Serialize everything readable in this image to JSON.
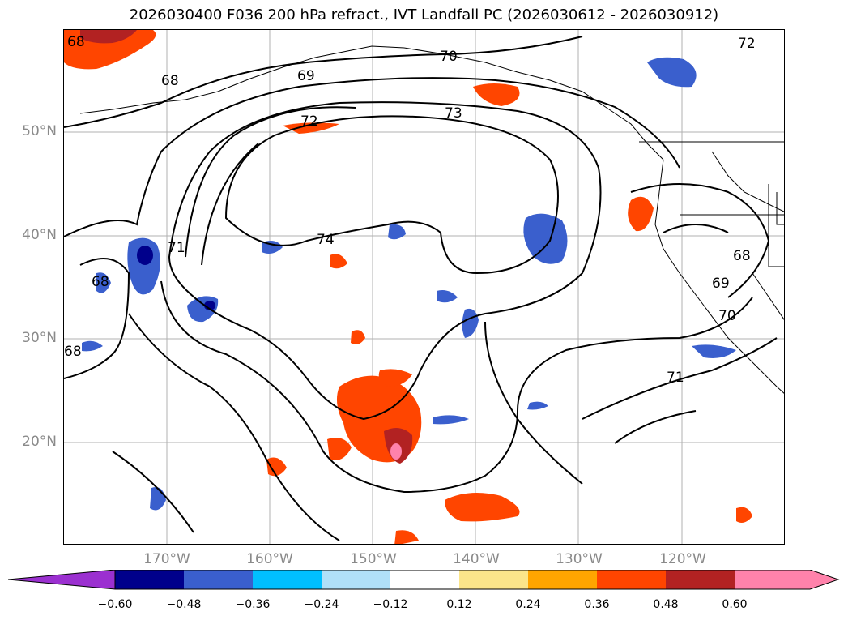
{
  "title": "2026030400 F036 200 hPa refract., IVT Landfall PC (2026030612 - 2026030912)",
  "lat_labels": [
    "50°N",
    "40°N",
    "30°N",
    "20°N"
  ],
  "lon_labels": [
    "170°W",
    "160°W",
    "150°W",
    "140°W",
    "130°W",
    "120°W"
  ],
  "contour_labels": [
    "68",
    "68",
    "69",
    "70",
    "72",
    "72",
    "73",
    "74",
    "71",
    "68",
    "68",
    "68",
    "69",
    "70",
    "71"
  ],
  "colorbar": {
    "ticks": [
      "−0.60",
      "−0.48",
      "−0.36",
      "−0.24",
      "−0.12",
      "0.12",
      "0.24",
      "0.36",
      "0.48",
      "0.60"
    ],
    "colors": [
      "#9b30d0",
      "#00008b",
      "#3a5fcd",
      "#00bfff",
      "#b0e0f8",
      "#ffffff",
      "#fbe58a",
      "#ffa500",
      "#ff4500",
      "#b22222",
      "#ff82ab",
      "#ff82ab"
    ]
  }
}
